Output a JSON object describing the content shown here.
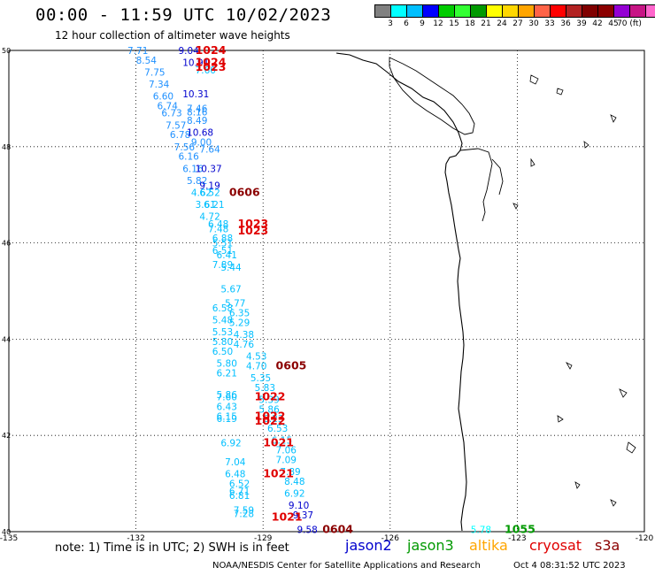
{
  "header": {
    "title": "00:00 - 11:59 UTC 10/02/2023",
    "subtitle": "12 hour collection of altimeter wave heights"
  },
  "colorbar": {
    "swatches": [
      "#808080",
      "#00ffff",
      "#00bfff",
      "#0000ff",
      "#00cc00",
      "#33ff33",
      "#009900",
      "#ffff00",
      "#ffd700",
      "#ffa500",
      "#ff6347",
      "#ff0000",
      "#b22222",
      "#800000",
      "#8b0000",
      "#9400d3",
      "#c71585",
      "#ff66cc",
      "#000000"
    ],
    "labels": [
      "3",
      "6",
      "9",
      "12",
      "15",
      "18",
      "21",
      "24",
      "27",
      "30",
      "33",
      "36",
      "39",
      "42",
      "45",
      "70 (ft)"
    ]
  },
  "axes": {
    "lat_labels": [
      "50",
      "48",
      "46",
      "44",
      "42",
      "40"
    ],
    "lon_labels": [
      "-135",
      "-132",
      "-129",
      "-126",
      "-123",
      "-120"
    ]
  },
  "chart_data": {
    "type": "scatter",
    "xlabel": "",
    "ylabel": "",
    "xlim": [
      -135,
      -120
    ],
    "ylim": [
      40,
      50
    ],
    "points": [
      {
        "lon": -132.2,
        "lat": 50.0,
        "v": "7.71",
        "c": "#1e90ff"
      },
      {
        "lon": -131.0,
        "lat": 50.0,
        "v": "9.04",
        "c": "#0000cd"
      },
      {
        "lon": -132.0,
        "lat": 49.8,
        "v": "8.54",
        "c": "#1e90ff"
      },
      {
        "lon": -130.9,
        "lat": 49.75,
        "v": "10.91",
        "c": "#0000cd"
      },
      {
        "lon": -131.8,
        "lat": 49.55,
        "v": "7.75",
        "c": "#1e90ff"
      },
      {
        "lon": -130.6,
        "lat": 49.6,
        "v": "7.60",
        "c": "#00bfff"
      },
      {
        "lon": -131.7,
        "lat": 49.3,
        "v": "7.34",
        "c": "#1e90ff"
      },
      {
        "lon": -131.6,
        "lat": 49.05,
        "v": "6.60",
        "c": "#1e90ff"
      },
      {
        "lon": -130.9,
        "lat": 49.1,
        "v": "10.31",
        "c": "#0000cd"
      },
      {
        "lon": -131.5,
        "lat": 48.85,
        "v": "6.74",
        "c": "#1e90ff"
      },
      {
        "lon": -130.8,
        "lat": 48.8,
        "v": "7.46",
        "c": "#1e90ff"
      },
      {
        "lon": -131.4,
        "lat": 48.7,
        "v": "6.73",
        "c": "#1e90ff"
      },
      {
        "lon": -130.8,
        "lat": 48.72,
        "v": "8.16",
        "c": "#1e90ff"
      },
      {
        "lon": -131.3,
        "lat": 48.45,
        "v": "7.57",
        "c": "#1e90ff"
      },
      {
        "lon": -130.8,
        "lat": 48.55,
        "v": "8.49",
        "c": "#1e90ff"
      },
      {
        "lon": -131.2,
        "lat": 48.25,
        "v": "6.78",
        "c": "#1e90ff"
      },
      {
        "lon": -130.8,
        "lat": 48.3,
        "v": "10.68",
        "c": "#0000cd"
      },
      {
        "lon": -131.1,
        "lat": 48.0,
        "v": "7.56",
        "c": "#1e90ff"
      },
      {
        "lon": -130.7,
        "lat": 48.1,
        "v": "9.00",
        "c": "#1e90ff"
      },
      {
        "lon": -130.5,
        "lat": 47.95,
        "v": "7.64",
        "c": "#1e90ff"
      },
      {
        "lon": -131.0,
        "lat": 47.8,
        "v": "6.16",
        "c": "#1e90ff"
      },
      {
        "lon": -130.9,
        "lat": 47.55,
        "v": "6.16",
        "c": "#1e90ff"
      },
      {
        "lon": -130.6,
        "lat": 47.55,
        "v": "10.37",
        "c": "#0000cd"
      },
      {
        "lon": -130.8,
        "lat": 47.3,
        "v": "5.82",
        "c": "#1e90ff"
      },
      {
        "lon": -130.5,
        "lat": 47.2,
        "v": "9.19",
        "c": "#0000cd"
      },
      {
        "lon": -130.7,
        "lat": 47.05,
        "v": "4.62",
        "c": "#00bfff"
      },
      {
        "lon": -130.5,
        "lat": 47.05,
        "v": "6.52",
        "c": "#00bfff"
      },
      {
        "lon": -130.6,
        "lat": 46.8,
        "v": "3.61",
        "c": "#00bfff"
      },
      {
        "lon": -130.4,
        "lat": 46.8,
        "v": "6.21",
        "c": "#00bfff"
      },
      {
        "lon": -130.5,
        "lat": 46.55,
        "v": "4.72",
        "c": "#00bfff"
      },
      {
        "lon": -130.3,
        "lat": 46.4,
        "v": "6.48",
        "c": "#00bfff"
      },
      {
        "lon": -130.3,
        "lat": 46.3,
        "v": "7.48",
        "c": "#00bfff"
      },
      {
        "lon": -130.2,
        "lat": 46.1,
        "v": "6.88",
        "c": "#00bfff"
      },
      {
        "lon": -130.2,
        "lat": 46.0,
        "v": "5.51",
        "c": "#00bfff"
      },
      {
        "lon": -130.2,
        "lat": 45.85,
        "v": "6.51",
        "c": "#00bfff"
      },
      {
        "lon": -130.1,
        "lat": 45.75,
        "v": "6.41",
        "c": "#00bfff"
      },
      {
        "lon": -130.2,
        "lat": 45.55,
        "v": "7.89",
        "c": "#00bfff"
      },
      {
        "lon": -130.0,
        "lat": 45.5,
        "v": "5.44",
        "c": "#00bfff"
      },
      {
        "lon": -130.0,
        "lat": 45.05,
        "v": "5.67",
        "c": "#00bfff"
      },
      {
        "lon": -129.9,
        "lat": 44.75,
        "v": "5.77",
        "c": "#00bfff"
      },
      {
        "lon": -130.2,
        "lat": 44.65,
        "v": "6.58",
        "c": "#00bfff"
      },
      {
        "lon": -129.8,
        "lat": 44.55,
        "v": "6.35",
        "c": "#00bfff"
      },
      {
        "lon": -130.2,
        "lat": 44.4,
        "v": "5.48",
        "c": "#00bfff"
      },
      {
        "lon": -129.8,
        "lat": 44.35,
        "v": "5.29",
        "c": "#00bfff"
      },
      {
        "lon": -130.2,
        "lat": 44.15,
        "v": "5.53",
        "c": "#00bfff"
      },
      {
        "lon": -129.7,
        "lat": 44.1,
        "v": "4.38",
        "c": "#00bfff"
      },
      {
        "lon": -130.2,
        "lat": 43.95,
        "v": "5.80",
        "c": "#00bfff"
      },
      {
        "lon": -129.7,
        "lat": 43.9,
        "v": "4.76",
        "c": "#00bfff"
      },
      {
        "lon": -130.2,
        "lat": 43.75,
        "v": "6.50",
        "c": "#00bfff"
      },
      {
        "lon": -129.4,
        "lat": 43.65,
        "v": "4.53",
        "c": "#00bfff"
      },
      {
        "lon": -130.1,
        "lat": 43.5,
        "v": "5.80",
        "c": "#00bfff"
      },
      {
        "lon": -129.4,
        "lat": 43.45,
        "v": "4.70",
        "c": "#00bfff"
      },
      {
        "lon": -130.1,
        "lat": 43.3,
        "v": "6.21",
        "c": "#00bfff"
      },
      {
        "lon": -129.3,
        "lat": 43.2,
        "v": "5.35",
        "c": "#00bfff"
      },
      {
        "lon": -129.2,
        "lat": 43.0,
        "v": "5.83",
        "c": "#00bfff"
      },
      {
        "lon": -130.1,
        "lat": 42.85,
        "v": "5.86",
        "c": "#00bfff"
      },
      {
        "lon": -130.1,
        "lat": 42.8,
        "v": "7.60",
        "c": "#00bfff"
      },
      {
        "lon": -129.1,
        "lat": 42.75,
        "v": "5.39",
        "c": "#00bfff"
      },
      {
        "lon": -130.1,
        "lat": 42.6,
        "v": "6.43",
        "c": "#00bfff"
      },
      {
        "lon": -129.1,
        "lat": 42.55,
        "v": "5.86",
        "c": "#00bfff"
      },
      {
        "lon": -130.1,
        "lat": 42.4,
        "v": "6.15",
        "c": "#00bfff"
      },
      {
        "lon": -130.1,
        "lat": 42.35,
        "v": "6.19",
        "c": "#00bfff"
      },
      {
        "lon": -129.0,
        "lat": 42.35,
        "v": "6.23",
        "c": "#00bfff"
      },
      {
        "lon": -128.9,
        "lat": 42.15,
        "v": "6.53",
        "c": "#00bfff"
      },
      {
        "lon": -130.0,
        "lat": 41.85,
        "v": "6.92",
        "c": "#00bfff"
      },
      {
        "lon": -128.8,
        "lat": 41.9,
        "v": "6.15",
        "c": "#00bfff"
      },
      {
        "lon": -128.7,
        "lat": 41.7,
        "v": "7.06",
        "c": "#00bfff"
      },
      {
        "lon": -129.9,
        "lat": 41.45,
        "v": "7.04",
        "c": "#00bfff"
      },
      {
        "lon": -128.7,
        "lat": 41.5,
        "v": "7.09",
        "c": "#00bfff"
      },
      {
        "lon": -129.9,
        "lat": 41.2,
        "v": "6.48",
        "c": "#00bfff"
      },
      {
        "lon": -128.6,
        "lat": 41.25,
        "v": "7.89",
        "c": "#00bfff"
      },
      {
        "lon": -129.8,
        "lat": 41.0,
        "v": "6.52",
        "c": "#00bfff"
      },
      {
        "lon": -128.5,
        "lat": 41.05,
        "v": "8.48",
        "c": "#00bfff"
      },
      {
        "lon": -129.8,
        "lat": 40.85,
        "v": "6.71",
        "c": "#00bfff"
      },
      {
        "lon": -129.8,
        "lat": 40.75,
        "v": "6.81",
        "c": "#00bfff"
      },
      {
        "lon": -128.5,
        "lat": 40.8,
        "v": "6.92",
        "c": "#00bfff"
      },
      {
        "lon": -128.4,
        "lat": 40.55,
        "v": "9.10",
        "c": "#0000cd"
      },
      {
        "lon": -129.7,
        "lat": 40.45,
        "v": "7.59",
        "c": "#00bfff"
      },
      {
        "lon": -129.7,
        "lat": 40.38,
        "v": "7.28",
        "c": "#00bfff"
      },
      {
        "lon": -128.3,
        "lat": 40.35,
        "v": "9.37",
        "c": "#0000cd"
      },
      {
        "lon": -128.2,
        "lat": 40.05,
        "v": "9.58",
        "c": "#0000cd"
      },
      {
        "lon": -124.1,
        "lat": 40.05,
        "v": "5.78",
        "c": "#00ffff"
      }
    ],
    "passes": [
      {
        "lon": -130.6,
        "lat": 50.0,
        "v": "1024",
        "c": "#e00000"
      },
      {
        "lon": -130.6,
        "lat": 49.75,
        "v": "1024",
        "c": "#e00000"
      },
      {
        "lon": -130.6,
        "lat": 49.65,
        "v": "1023",
        "c": "#e00000"
      },
      {
        "lon": -129.8,
        "lat": 47.05,
        "v": "0606",
        "c": "#8b0000"
      },
      {
        "lon": -129.6,
        "lat": 46.4,
        "v": "1023",
        "c": "#e00000"
      },
      {
        "lon": -129.6,
        "lat": 46.25,
        "v": "1023",
        "c": "#e00000"
      },
      {
        "lon": -128.7,
        "lat": 43.45,
        "v": "0605",
        "c": "#8b0000"
      },
      {
        "lon": -129.2,
        "lat": 42.8,
        "v": "1022",
        "c": "#e00000"
      },
      {
        "lon": -129.2,
        "lat": 42.4,
        "v": "1022",
        "c": "#e00000"
      },
      {
        "lon": -129.2,
        "lat": 42.3,
        "v": "1022",
        "c": "#e00000"
      },
      {
        "lon": -129.0,
        "lat": 41.85,
        "v": "1021",
        "c": "#e00000"
      },
      {
        "lon": -129.0,
        "lat": 41.2,
        "v": "1021",
        "c": "#e00000"
      },
      {
        "lon": -128.8,
        "lat": 40.3,
        "v": "1021",
        "c": "#e00000"
      },
      {
        "lon": -127.6,
        "lat": 40.05,
        "v": "0604",
        "c": "#8b0000"
      },
      {
        "lon": -123.3,
        "lat": 40.05,
        "v": "1055",
        "c": "#009900"
      }
    ]
  },
  "footer": {
    "note": "note: 1) Time is in UTC; 2) SWH is in feet",
    "satellites": [
      {
        "label": "jason2",
        "color": "#0000cd"
      },
      {
        "label": "jason3",
        "color": "#009900"
      },
      {
        "label": "altika",
        "color": "#ffa500"
      },
      {
        "label": "cryosat",
        "color": "#e00000"
      },
      {
        "label": "s3a",
        "color": "#8b0000"
      }
    ],
    "credit": "NOAA/NESDIS Center for Satellite Applications and Research",
    "timestamp": "Oct  4 08:31:52 UTC 2023"
  }
}
